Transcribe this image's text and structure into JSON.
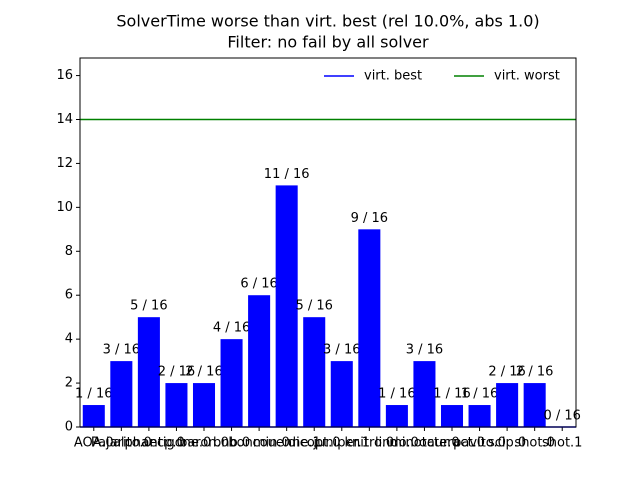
{
  "chart_data": {
    "type": "bar",
    "title": "SolverTime worse than virt. best (rel 10.0%, abs 1.0)",
    "subtitle": "Filter: no fail by all solver",
    "categories": [
      "AOA.0",
      "Pajarito.0",
      "alphaecp.0",
      "antigone.0",
      "baron.0",
      "bnb.0",
      "bonmin.0",
      "couenne.1",
      "dicopt.0",
      "juniper.1",
      "knitro.0",
      "lindo.0",
      "minotaur.0",
      "octeract.0",
      "pavito.0",
      "scip.0",
      "shot.0",
      "shot.1"
    ],
    "values": [
      1,
      3,
      5,
      2,
      2,
      4,
      6,
      11,
      5,
      3,
      9,
      1,
      3,
      1,
      1,
      2,
      2,
      0
    ],
    "value_labels": [
      "1 / 16",
      "3 / 16",
      "5 / 16",
      "2 / 16",
      "2 / 16",
      "4 / 16",
      "6 / 16",
      "11 / 16",
      "5 / 16",
      "3 / 16",
      "9 / 16",
      "1 / 16",
      "3 / 16",
      "1 / 16",
      "1 / 16",
      "2 / 16",
      "2 / 16",
      "0 / 16"
    ],
    "color": "#0000ff",
    "reference_lines": [
      {
        "name": "virt. best",
        "color": "#0000ff",
        "value": 0
      },
      {
        "name": "virt. worst",
        "color": "#008000",
        "value": 14
      }
    ],
    "legend": "upper right",
    "ylim": [
      0,
      16.8
    ],
    "yticks": [
      0,
      2,
      4,
      6,
      8,
      10,
      12,
      14,
      16
    ]
  }
}
